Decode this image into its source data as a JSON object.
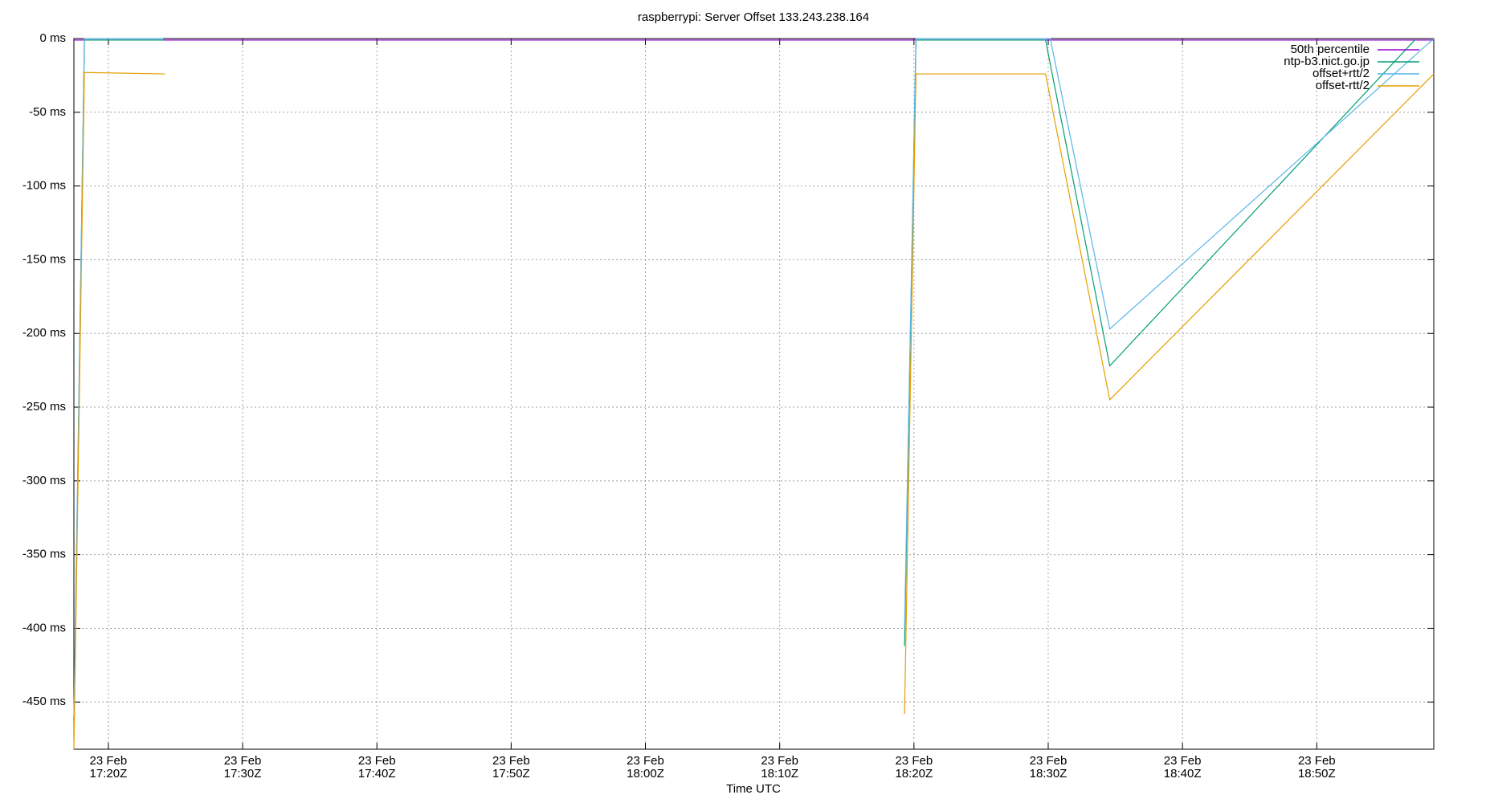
{
  "chart_data": {
    "type": "line",
    "title": "raspberrypi: Server Offset 133.243.238.164",
    "x_label": "Time UTC",
    "xlim": [
      "17:17:26",
      "18:58:43"
    ],
    "xticks": [
      {
        "value": "17:20",
        "label": [
          "23 Feb",
          "17:20Z"
        ]
      },
      {
        "value": "17:30",
        "label": [
          "23 Feb",
          "17:30Z"
        ]
      },
      {
        "value": "17:40",
        "label": [
          "23 Feb",
          "17:40Z"
        ]
      },
      {
        "value": "17:50",
        "label": [
          "23 Feb",
          "17:50Z"
        ]
      },
      {
        "value": "18:00",
        "label": [
          "23 Feb",
          "18:00Z"
        ]
      },
      {
        "value": "18:10",
        "label": [
          "23 Feb",
          "18:10Z"
        ]
      },
      {
        "value": "18:20",
        "label": [
          "23 Feb",
          "18:20Z"
        ]
      },
      {
        "value": "18:30",
        "label": [
          "23 Feb",
          "18:30Z"
        ]
      },
      {
        "value": "18:40",
        "label": [
          "23 Feb",
          "18:40Z"
        ]
      },
      {
        "value": "18:50",
        "label": [
          "23 Feb",
          "18:50Z"
        ]
      }
    ],
    "ylim": [
      -482,
      0
    ],
    "yticks": [
      {
        "value": 0,
        "label": "0 ms"
      },
      {
        "value": -50,
        "label": "-50 ms"
      },
      {
        "value": -100,
        "label": "-100 ms"
      },
      {
        "value": -150,
        "label": "-150 ms"
      },
      {
        "value": -200,
        "label": "-200 ms"
      },
      {
        "value": -250,
        "label": "-250 ms"
      },
      {
        "value": -300,
        "label": "-300 ms"
      },
      {
        "value": -350,
        "label": "-350 ms"
      },
      {
        "value": -400,
        "label": "-400 ms"
      },
      {
        "value": -450,
        "label": "-450 ms"
      }
    ],
    "grid": true,
    "legend": "top-right",
    "series": [
      {
        "name": "50th percentile",
        "color": "#9400d3",
        "x": [
          "17:17:26",
          "18:58:43"
        ],
        "values": [
          -1,
          -1
        ]
      },
      {
        "name": "ntp-b3.nict.go.jp",
        "color": "#009e73",
        "x": [
          "17:17:26",
          "17:18:13",
          "17:24:05",
          null,
          "18:19:18",
          "18:20:09",
          "18:29:48",
          "18:34:35",
          "18:57:18"
        ],
        "values": [
          -470,
          -1,
          -1,
          null,
          -412,
          -1,
          -1,
          -222,
          -1
        ]
      },
      {
        "name": "offset+rtt/2",
        "color": "#56b4e9",
        "x": [
          "17:17:26",
          "17:18:13",
          "17:24:05",
          null,
          "18:19:18",
          "18:20:09",
          "18:30:09",
          "18:34:35",
          "18:58:43"
        ],
        "values": [
          -460,
          0,
          0,
          null,
          -400,
          0,
          0,
          -197,
          0
        ]
      },
      {
        "name": "offset-rtt/2",
        "color": "#e69f00",
        "x": [
          "17:17:26",
          "17:18:13",
          "17:24:13",
          null,
          "18:19:18",
          "18:20:09",
          "18:29:48",
          "18:34:35",
          "18:58:43"
        ],
        "values": [
          -482,
          -23,
          -24,
          null,
          -458,
          -24,
          -24,
          -245,
          -24
        ]
      }
    ]
  }
}
